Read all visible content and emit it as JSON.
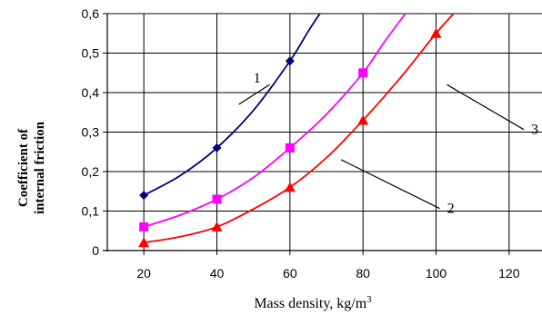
{
  "chart_data": {
    "type": "line",
    "xlabel": "Mass density, kg/m",
    "xlabel_sup": "3",
    "ylabel_line1": "Coefficient of",
    "ylabel_line2": "internal friction",
    "xlim": [
      10,
      130
    ],
    "ylim": [
      0,
      0.6
    ],
    "x_ticks": [
      20,
      40,
      60,
      80,
      100,
      120
    ],
    "x_tick_labels": [
      "20",
      "40",
      "60",
      "80",
      "100",
      "120"
    ],
    "y_ticks": [
      0,
      0.1,
      0.2,
      0.3,
      0.4,
      0.5,
      0.6
    ],
    "y_tick_labels": [
      "0",
      "0,1",
      "0,2",
      "0,3",
      "0,4",
      "0,5",
      "0,6"
    ],
    "grid": true,
    "series": [
      {
        "label": "1",
        "color": "#000080",
        "marker": "diamond",
        "points": [
          [
            20,
            0.14
          ],
          [
            40,
            0.26
          ],
          [
            60,
            0.48
          ]
        ],
        "curve": [
          [
            20,
            0.14
          ],
          [
            30,
            0.19
          ],
          [
            40,
            0.26
          ],
          [
            50,
            0.355
          ],
          [
            60,
            0.48
          ],
          [
            65,
            0.555
          ],
          [
            68.2,
            0.6
          ]
        ],
        "label_at": [
          51,
          0.425
        ],
        "leader_to": [
          46,
          0.37
        ]
      },
      {
        "label": "2",
        "color": "#ff00ff",
        "marker": "square",
        "points": [
          [
            20,
            0.06
          ],
          [
            40,
            0.13
          ],
          [
            60,
            0.26
          ],
          [
            80,
            0.45
          ]
        ],
        "curve": [
          [
            20,
            0.06
          ],
          [
            30,
            0.09
          ],
          [
            40,
            0.13
          ],
          [
            50,
            0.185
          ],
          [
            60,
            0.26
          ],
          [
            70,
            0.345
          ],
          [
            80,
            0.45
          ],
          [
            86,
            0.53
          ],
          [
            91.6,
            0.6
          ]
        ],
        "label_at": [
          104,
          0.095
        ],
        "leader_to": [
          74,
          0.23
        ]
      },
      {
        "label": "3",
        "color": "#ff0000",
        "marker": "triangle",
        "points": [
          [
            20,
            0.02
          ],
          [
            40,
            0.06
          ],
          [
            60,
            0.16
          ],
          [
            80,
            0.33
          ],
          [
            100,
            0.55
          ]
        ],
        "curve": [
          [
            20,
            0.02
          ],
          [
            30,
            0.035
          ],
          [
            40,
            0.06
          ],
          [
            50,
            0.105
          ],
          [
            60,
            0.16
          ],
          [
            70,
            0.235
          ],
          [
            80,
            0.33
          ],
          [
            90,
            0.435
          ],
          [
            100,
            0.55
          ],
          [
            104.8,
            0.6
          ]
        ],
        "label_at": [
          127,
          0.295
        ],
        "leader_to": [
          103,
          0.42
        ]
      }
    ]
  }
}
